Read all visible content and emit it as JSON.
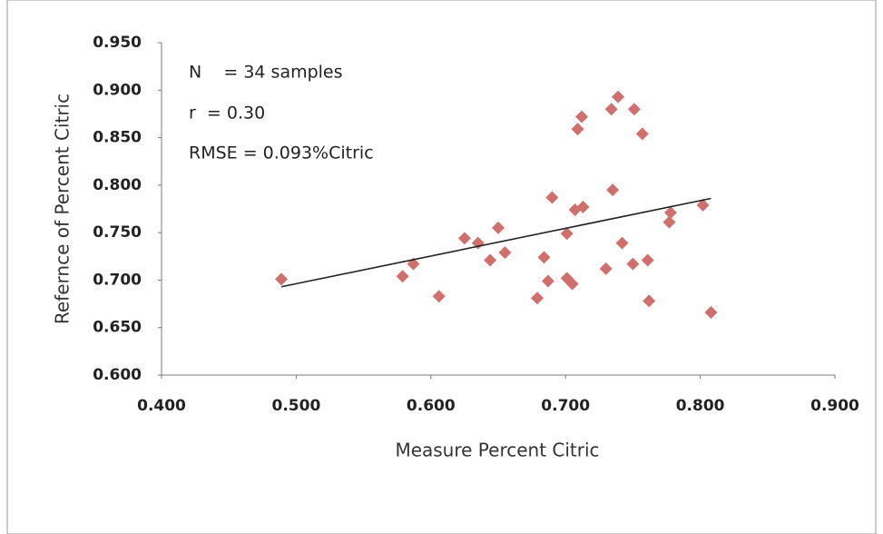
{
  "chart_data": {
    "type": "scatter",
    "xlabel": "Measure Percent Citric",
    "ylabel": "Refernce of Percent Citric",
    "annotations": [
      "N    = 34 samples",
      "r  = 0.30",
      "RMSE = 0.093%Citric"
    ],
    "xlim": [
      0.4,
      0.9
    ],
    "ylim": [
      0.6,
      0.95
    ],
    "xticks": [
      {
        "value": 0.4,
        "label": "0.400"
      },
      {
        "value": 0.5,
        "label": "0.500"
      },
      {
        "value": 0.6,
        "label": "0.600"
      },
      {
        "value": 0.7,
        "label": "0.700"
      },
      {
        "value": 0.8,
        "label": "0.800"
      },
      {
        "value": 0.9,
        "label": "0.900"
      }
    ],
    "yticks": [
      {
        "value": 0.6,
        "label": "0.600"
      },
      {
        "value": 0.65,
        "label": "0.650"
      },
      {
        "value": 0.7,
        "label": "0.700"
      },
      {
        "value": 0.75,
        "label": "0.750"
      },
      {
        "value": 0.8,
        "label": "0.800"
      },
      {
        "value": 0.85,
        "label": "0.850"
      },
      {
        "value": 0.9,
        "label": "0.900"
      },
      {
        "value": 0.95,
        "label": "0.950"
      }
    ],
    "grid": false,
    "series": [
      {
        "type": "scatter",
        "color": "#d0706c",
        "x": [
          0.489,
          0.579,
          0.587,
          0.606,
          0.625,
          0.635,
          0.644,
          0.65,
          0.655,
          0.679,
          0.684,
          0.687,
          0.69,
          0.701,
          0.701,
          0.705,
          0.707,
          0.709,
          0.712,
          0.713,
          0.73,
          0.734,
          0.735,
          0.739,
          0.742,
          0.75,
          0.751,
          0.757,
          0.761,
          0.762,
          0.777,
          0.778,
          0.802,
          0.808
        ],
        "values": [
          0.701,
          0.704,
          0.717,
          0.683,
          0.744,
          0.739,
          0.721,
          0.755,
          0.729,
          0.681,
          0.724,
          0.699,
          0.787,
          0.749,
          0.702,
          0.696,
          0.774,
          0.859,
          0.872,
          0.777,
          0.712,
          0.88,
          0.795,
          0.893,
          0.739,
          0.717,
          0.88,
          0.854,
          0.721,
          0.678,
          0.761,
          0.771,
          0.779,
          0.666
        ]
      },
      {
        "type": "line",
        "color": "#222222",
        "x": [
          0.489,
          0.808
        ],
        "values": [
          0.693,
          0.786
        ]
      }
    ]
  }
}
